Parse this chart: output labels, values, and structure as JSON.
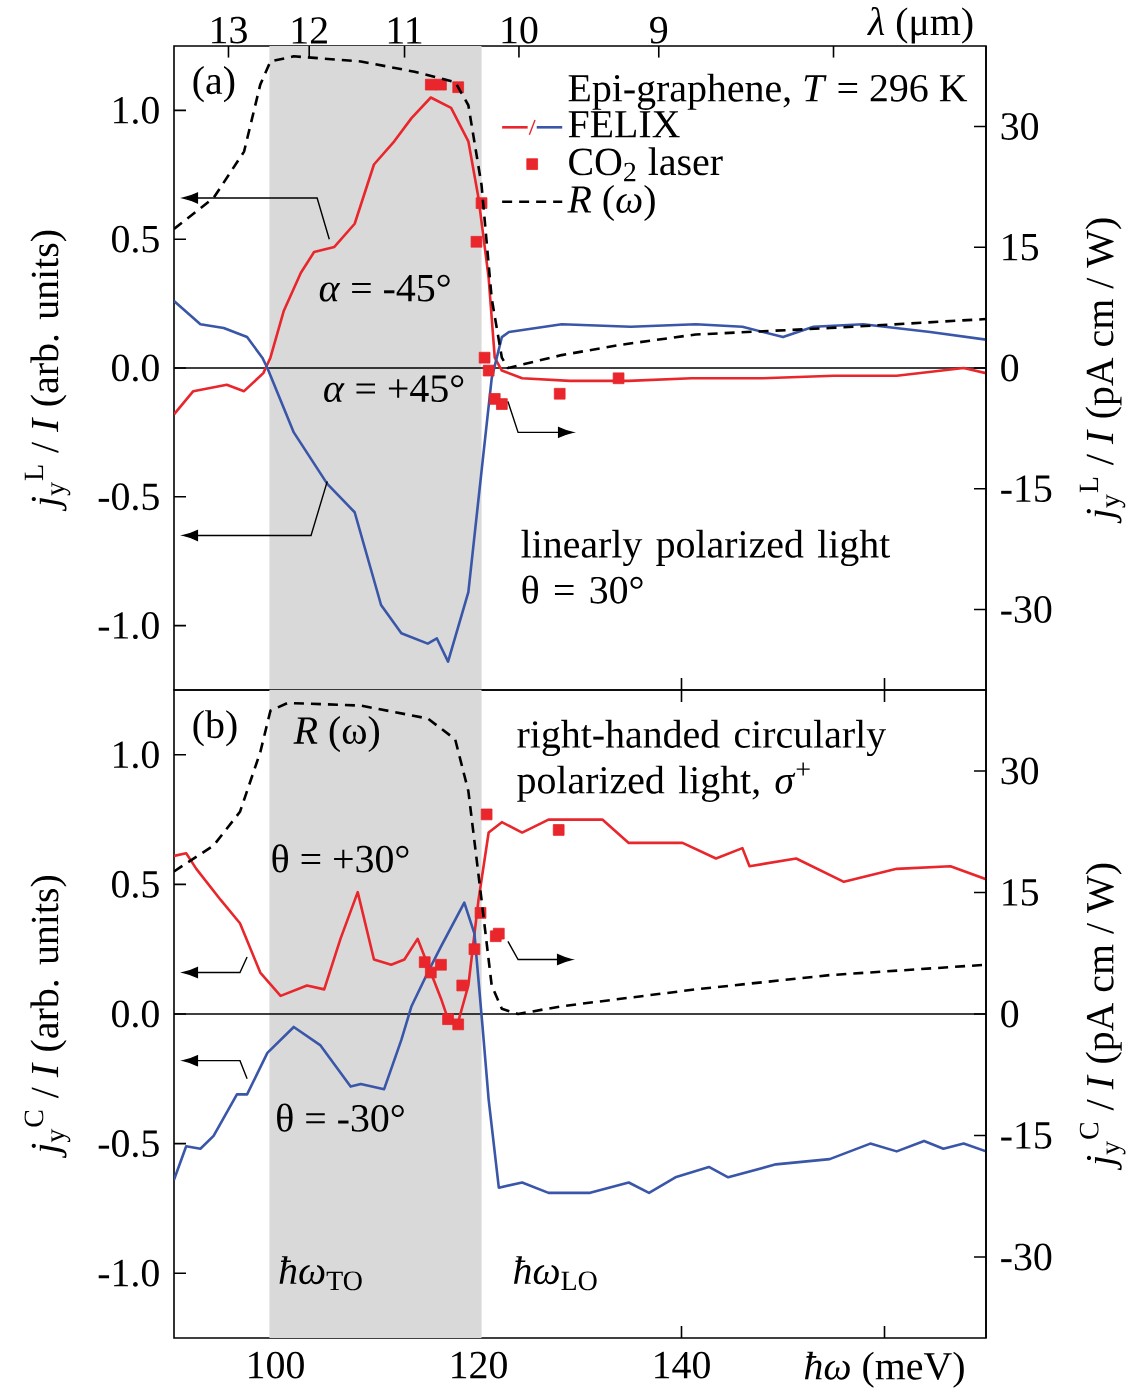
{
  "chart_data": [
    {
      "type": "line",
      "ylabel": "*j*$_{y}$$^{L}$ / *I* (arb. units)",
      "y2label": "*j*$_{y}$$^{L}$ / *I* (pA cm / W)",
      "x2label": "*λ* (μm)",
      "legend": "top right",
      "legend_title": "Epi-graphene, *T* = 296 K",
      "tick_labels": "y",
      "xlim": [
        90,
        170
      ],
      "xticks": [
        100,
        120,
        140,
        160
      ],
      "ylim": [
        -1.25,
        1.25
      ],
      "yticks": [
        {
          "value": -1,
          "label": "-1.0"
        },
        {
          "value": -0.5,
          "label": "-0.5"
        },
        {
          "value": 0,
          "label": "0.0"
        },
        {
          "value": 0.5,
          "label": "0.5"
        },
        {
          "value": 1,
          "label": "1.0"
        }
      ],
      "y2lim": [
        -40,
        40
      ],
      "y2ticks": [
        -30,
        -15,
        0,
        15,
        30
      ],
      "bands": [
        {
          "axis": "x",
          "from": 99.4,
          "to": 120.3,
          "color": "#d9d9d9"
        }
      ],
      "ref_lines": [
        {
          "axis": "y",
          "value": 0,
          "color": "#000000"
        }
      ],
      "series": [
        {
          "name": "FELIX",
          "color": "#e8262b",
          "x": [
            90,
            91.9,
            95.2,
            96.9,
            98.8,
            99.5,
            100.8,
            102.5,
            103.8,
            105.8,
            107.8,
            109.7,
            111.7,
            113.4,
            115.3,
            117.3,
            119,
            120,
            121,
            121.6,
            122.3,
            124.3,
            129,
            134.8,
            141,
            148,
            155,
            161.2,
            167.8,
            170
          ],
          "values": [
            -0.18,
            -0.09,
            -0.065,
            -0.09,
            -0.02,
            0.04,
            0.22,
            0.37,
            0.45,
            0.47,
            0.56,
            0.79,
            0.88,
            0.97,
            1.05,
            1.01,
            0.88,
            0.66,
            0.35,
            0.04,
            -0.01,
            -0.04,
            -0.05,
            -0.05,
            -0.04,
            -0.04,
            -0.03,
            -0.03,
            0.0,
            -0.02
          ]
        },
        {
          "color": "#3a56a8",
          "x": [
            90,
            92.6,
            94.9,
            97.2,
            98.7,
            99.2,
            101.8,
            105.1,
            107.8,
            110.4,
            112.4,
            115,
            115.9,
            117,
            119,
            120.3,
            121.3,
            122.3,
            123,
            128.2,
            135,
            141.4,
            146,
            150,
            153,
            157.9,
            164.5,
            170
          ],
          "values": [
            0.26,
            0.17,
            0.155,
            0.12,
            0.04,
            0.0,
            -0.25,
            -0.45,
            -0.56,
            -0.92,
            -1.03,
            -1.07,
            -1.05,
            -1.14,
            -0.87,
            -0.4,
            -0.04,
            0.12,
            0.14,
            0.17,
            0.16,
            0.17,
            0.16,
            0.12,
            0.16,
            0.17,
            0.14,
            0.11
          ]
        },
        {
          "name": "CO$_{2}$ laser",
          "type": "scatter",
          "marker": "square",
          "color": "#e8262b",
          "x": [
            115.3,
            116.3,
            118,
            120.3,
            119.8,
            120.6,
            121,
            121.6,
            122.3,
            128,
            133.8
          ],
          "values": [
            1.1,
            1.1,
            1.09,
            0.64,
            0.49,
            0.04,
            -0.01,
            -0.12,
            -0.14,
            -0.1,
            -0.04
          ]
        },
        {
          "name": "*R* (*ω*)",
          "color": "#000000",
          "line_style": "dashed",
          "x": [
            90,
            93.9,
            96.9,
            98.5,
            99.5,
            101.8,
            108.4,
            113.7,
            117.7,
            119,
            120.3,
            121.3,
            122.3,
            122.9,
            128.2,
            134,
            141.4,
            154.6,
            170
          ],
          "values": [
            0.54,
            0.66,
            0.84,
            1.1,
            1.19,
            1.21,
            1.19,
            1.15,
            1.11,
            1.02,
            0.71,
            0.27,
            0.04,
            0.0,
            0.05,
            0.09,
            0.13,
            0.155,
            0.19
          ]
        }
      ],
      "annotations": [
        "(a)",
        "*α* = -45°",
        "*α* = +45°",
        "linearly polarized light θ = 30°",
        "13",
        "12",
        "11",
        "10",
        "9"
      ]
    },
    {
      "type": "line",
      "xlabel": "*ħω* (meV)",
      "ylabel": "*j*$_{y}$$^{C}$ / *I* (arb. units)",
      "y2label": "*j*$_{y}$$^{C}$ / *I* (pA cm / W)",
      "xlim": [
        90,
        170
      ],
      "xticks": [
        100,
        120,
        140,
        {
          "value": 160,
          "label": null
        }
      ],
      "ylim": [
        -1.25,
        1.25
      ],
      "yticks": [
        {
          "value": -1,
          "label": "-1.0"
        },
        {
          "value": -0.5,
          "label": "-0.5"
        },
        {
          "value": 0,
          "label": "0.0"
        },
        {
          "value": 0.5,
          "label": "0.5"
        },
        {
          "value": 1,
          "label": "1.0"
        }
      ],
      "y2lim": [
        -40,
        40
      ],
      "y2ticks": [
        -30,
        -15,
        0,
        15,
        30
      ],
      "bands": [
        {
          "axis": "x",
          "from": 99.4,
          "to": 120.3,
          "color": "#d9d9d9"
        }
      ],
      "ref_lines": [
        {
          "axis": "y",
          "value": 0,
          "color": "#000000"
        }
      ],
      "series": [
        {
          "color": "#e8262b",
          "x": [
            90,
            91.2,
            92.2,
            94.6,
            96.5,
            98.5,
            100.5,
            103.1,
            104.8,
            106.4,
            108.1,
            109.7,
            111.4,
            112.7,
            114,
            115.3,
            116.3,
            117,
            118,
            119,
            120,
            121,
            122.3,
            124.3,
            126.9,
            132.2,
            134.8,
            140.1,
            143.4,
            146,
            146.7,
            151.3,
            156,
            161.2,
            166.5,
            170
          ],
          "values": [
            0.61,
            0.62,
            0.56,
            0.44,
            0.35,
            0.16,
            0.07,
            0.11,
            0.095,
            0.29,
            0.47,
            0.21,
            0.19,
            0.21,
            0.29,
            0.16,
            0.06,
            -0.02,
            -0.03,
            0.11,
            0.44,
            0.7,
            0.74,
            0.7,
            0.75,
            0.75,
            0.66,
            0.66,
            0.6,
            0.64,
            0.57,
            0.6,
            0.51,
            0.56,
            0.57,
            0.52
          ]
        },
        {
          "color": "#3a56a8",
          "x": [
            90,
            91.2,
            92.6,
            93.9,
            96.2,
            97.2,
            99.2,
            101.8,
            104.4,
            107.4,
            108.4,
            110.7,
            112.4,
            113.4,
            115,
            116.3,
            118.6,
            119.6,
            120.4,
            121,
            122,
            124.3,
            126.9,
            131,
            134.8,
            136.8,
            139.4,
            142.7,
            144.6,
            149.3,
            154.6,
            158.6,
            161.2,
            163.9,
            165.8,
            167.8,
            170
          ],
          "values": [
            -0.64,
            -0.51,
            -0.52,
            -0.47,
            -0.31,
            -0.31,
            -0.15,
            -0.05,
            -0.12,
            -0.28,
            -0.27,
            -0.29,
            -0.1,
            0.03,
            0.16,
            0.26,
            0.43,
            0.31,
            -0.05,
            -0.33,
            -0.67,
            -0.65,
            -0.69,
            -0.69,
            -0.65,
            -0.69,
            -0.63,
            -0.59,
            -0.63,
            -0.58,
            -0.56,
            -0.5,
            -0.53,
            -0.49,
            -0.52,
            -0.5,
            -0.53
          ]
        },
        {
          "type": "scatter",
          "marker": "square",
          "color": "#e8262b",
          "x": [
            120.8,
            127.9,
            120.2,
            122,
            121.7,
            119.6,
            114.7,
            115.3,
            116.3,
            118.4,
            117,
            118
          ],
          "values": [
            0.77,
            0.71,
            0.39,
            0.31,
            0.3,
            0.25,
            0.2,
            0.16,
            0.19,
            0.11,
            -0.02,
            -0.04
          ]
        },
        {
          "color": "#000000",
          "line_style": "dashed",
          "x": [
            90,
            93.9,
            96.5,
            98.5,
            99.5,
            101.2,
            108.4,
            115,
            117.7,
            119,
            120.3,
            121.3,
            122.3,
            123.9,
            128.2,
            141.4,
            154.6,
            170
          ],
          "values": [
            0.55,
            0.65,
            0.78,
            1.01,
            1.17,
            1.2,
            1.19,
            1.14,
            1.06,
            0.86,
            0.44,
            0.11,
            0.02,
            0.0,
            0.03,
            0.095,
            0.15,
            0.19
          ]
        }
      ],
      "annotations": [
        "(b)",
        "right-handed circularly polarized light, *σ*$^{+}$",
        "*R* (ω)",
        "θ = +30°",
        "θ = -30°",
        "*ħω*$_{TO}$",
        "*ħω*$_{LO}$"
      ]
    }
  ]
}
